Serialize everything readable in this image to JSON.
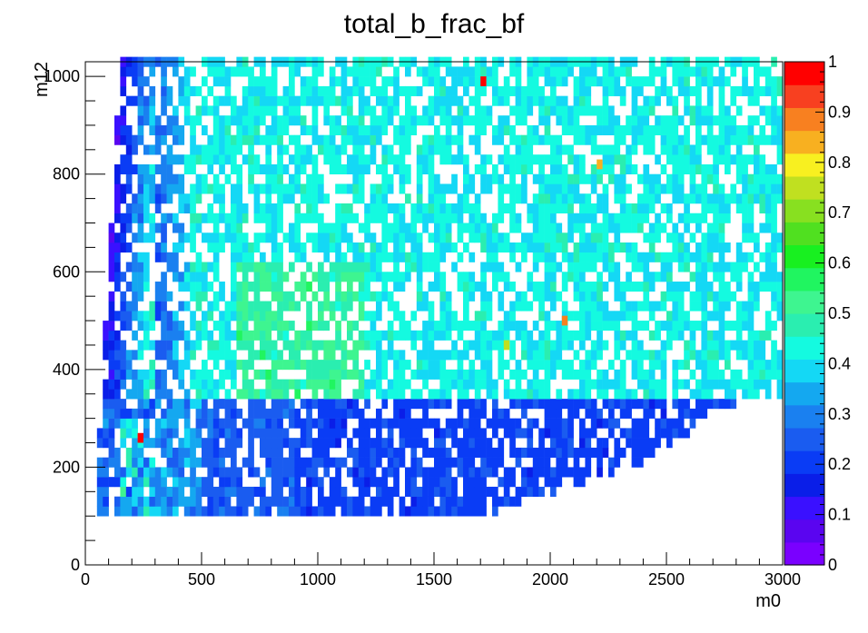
{
  "chart_data": {
    "type": "heatmap",
    "title": "total_b_frac_bf",
    "xlabel": "m0",
    "ylabel": "m12",
    "xlim": [
      0,
      3000
    ],
    "ylim": [
      0,
      1030
    ],
    "x_ticks": [
      0,
      500,
      1000,
      1500,
      2000,
      2500,
      3000
    ],
    "y_ticks": [
      0,
      200,
      400,
      600,
      800,
      1000
    ],
    "z_range": [
      0,
      1
    ],
    "z_ticks": [
      0,
      0.1,
      0.2,
      0.3,
      0.4,
      0.5,
      0.6,
      0.7,
      0.8,
      0.9,
      1
    ],
    "bins": {
      "x_bin_width": 25,
      "y_bin_width": 20
    },
    "palette": [
      "#7a00ff",
      "#5a05f0",
      "#3a10ff",
      "#0a1ee8",
      "#0a3cf5",
      "#1a5cf0",
      "#1a80f0",
      "#14a8f0",
      "#14d8f5",
      "#14fae0",
      "#2aeeb0",
      "#3ef590",
      "#20f560",
      "#18f020",
      "#50e020",
      "#88e020",
      "#c0e020",
      "#f8f020",
      "#f8b020",
      "#f88020",
      "#f84020",
      "#ff0000"
    ],
    "regions": [
      {
        "name": "low-m12 band",
        "m0": [
          50,
          3000
        ],
        "m12": [
          100,
          340
        ],
        "typical_z": 0.2
      },
      {
        "name": "low-m0 wedge",
        "m0": [
          100,
          400
        ],
        "m12": [
          300,
          1030
        ],
        "typical_z": 0.1
      },
      {
        "name": "upper plateau",
        "m0": [
          500,
          3000
        ],
        "m12": [
          340,
          1030
        ],
        "typical_z": 0.42
      },
      {
        "name": "central hot zone",
        "m0": [
          650,
          1200
        ],
        "m12": [
          300,
          600
        ],
        "typical_z": 0.5
      }
    ],
    "grid": false
  }
}
